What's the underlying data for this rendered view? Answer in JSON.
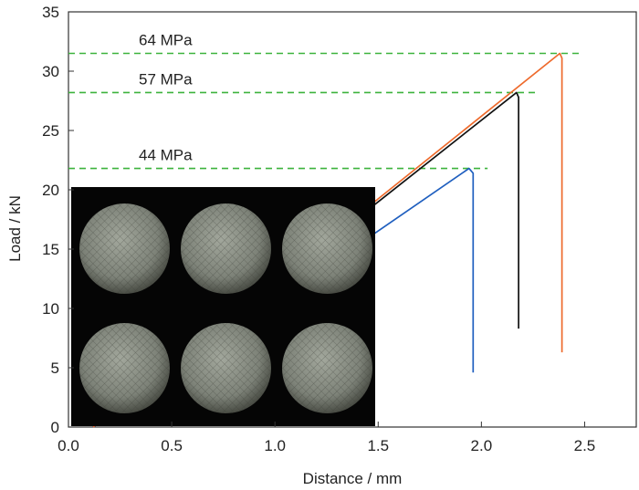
{
  "chart_data": {
    "type": "line",
    "title": "",
    "xlabel": "Distance / mm",
    "ylabel": "Load / kN",
    "xlim": [
      0,
      2.75
    ],
    "ylim": [
      0,
      35
    ],
    "x_ticks": [
      "0.0",
      "0.5",
      "1.0",
      "1.5",
      "2.0",
      "2.5"
    ],
    "y_ticks": [
      "0",
      "5",
      "10",
      "15",
      "20",
      "25",
      "30",
      "35"
    ],
    "grid": false,
    "legend": "none",
    "series": [
      {
        "color": "#1f5fbf",
        "x": [
          0.12,
          1.94,
          1.96,
          1.96
        ],
        "y": [
          0.0,
          21.8,
          21.4,
          4.6
        ]
      },
      {
        "color": "#111111",
        "x": [
          0.12,
          2.17,
          2.18,
          2.18
        ],
        "y": [
          0.0,
          28.2,
          27.8,
          8.3
        ]
      },
      {
        "color": "#ee6a2c",
        "x": [
          0.12,
          2.38,
          2.39,
          2.39
        ],
        "y": [
          0.0,
          31.5,
          31.1,
          6.3
        ]
      }
    ],
    "reference_lines": [
      {
        "y": 31.5,
        "label": "64 MPa",
        "x_end": 2.48,
        "color": "#3cb33c"
      },
      {
        "y": 28.2,
        "label": "57 MPa",
        "x_end": 2.28,
        "color": "#3cb33c"
      },
      {
        "y": 21.8,
        "label": "44 MPa",
        "x_end": 2.03,
        "color": "#3cb33c"
      }
    ],
    "inset_photo": {
      "description_icon": "specimen-photo",
      "rows": 2,
      "cols": 3,
      "background": "#050505",
      "disk_color": "#7d8278"
    }
  }
}
